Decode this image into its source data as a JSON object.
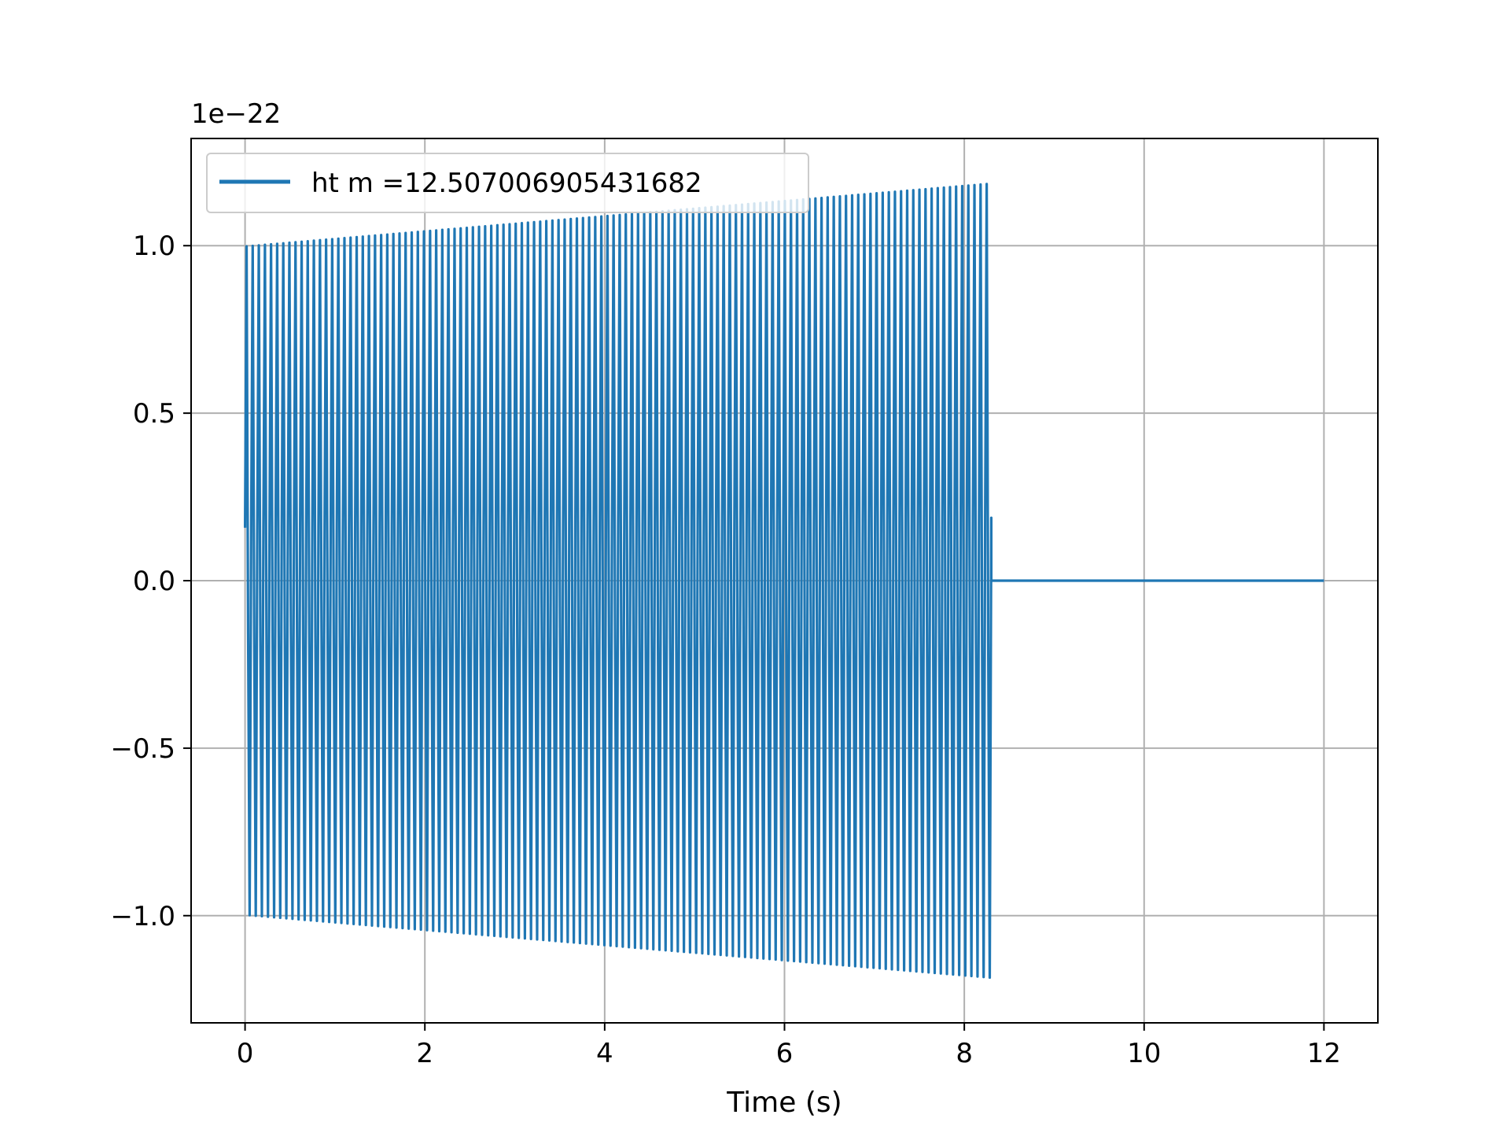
{
  "chart_data": {
    "type": "line",
    "title": "",
    "xlabel": "Time (s)",
    "ylabel": "",
    "y_offset_label": "1e−22",
    "xlim": [
      -0.6,
      12.6
    ],
    "ylim": [
      -1.32,
      1.32
    ],
    "xticks": [
      0,
      2,
      4,
      6,
      8,
      10,
      12
    ],
    "xtick_labels": [
      "0",
      "2",
      "4",
      "6",
      "8",
      "10",
      "12"
    ],
    "yticks": [
      -1.0,
      -0.5,
      0.0,
      0.5,
      1.0
    ],
    "ytick_labels": [
      "−1.0",
      "−0.5",
      "0.0",
      "0.5",
      "1.0"
    ],
    "grid": true,
    "legend_position": "upper-left",
    "series": [
      {
        "name": "ht m =12.507006905431682",
        "color": "#1f77b4",
        "signal_start": 0.0,
        "signal_end": 8.3,
        "signal_amplitude_start": 1.01,
        "signal_amplitude_end": 1.2,
        "oscillation_cycles": 122,
        "flat_end": 12.0,
        "flat_value": 0.0
      }
    ]
  }
}
